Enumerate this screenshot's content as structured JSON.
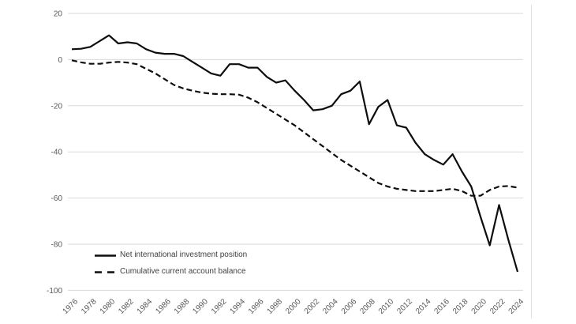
{
  "chart_data": {
    "type": "line",
    "title": "",
    "xlabel": "",
    "ylabel": "",
    "x": [
      1976,
      1977,
      1978,
      1979,
      1980,
      1981,
      1982,
      1983,
      1984,
      1985,
      1986,
      1987,
      1988,
      1989,
      1990,
      1991,
      1992,
      1993,
      1994,
      1995,
      1996,
      1997,
      1998,
      1999,
      2000,
      2001,
      2002,
      2003,
      2004,
      2005,
      2006,
      2007,
      2008,
      2009,
      2010,
      2011,
      2012,
      2013,
      2014,
      2015,
      2016,
      2017,
      2018,
      2019,
      2020,
      2021,
      2022,
      2023,
      2024
    ],
    "series": [
      {
        "name": "Net international investment position",
        "style": "solid",
        "values": [
          4.5,
          4.7,
          5.5,
          8,
          10.5,
          7,
          7.5,
          7,
          4.5,
          3,
          2.5,
          2.5,
          1.5,
          -1,
          -3.5,
          -6,
          -7,
          -2,
          -2,
          -3.5,
          -3.5,
          -7.5,
          -10,
          -9,
          -13.5,
          -17.5,
          -22,
          -21.5,
          -20,
          -15,
          -13.5,
          -9.5,
          -28,
          -20.5,
          -17.5,
          -28.5,
          -29.5,
          -36,
          -41,
          -43.5,
          -45.5,
          -41,
          -48.5,
          -55,
          -68,
          -80.5,
          -63,
          -78,
          -92
        ]
      },
      {
        "name": "Cumulative current account balance",
        "style": "dashed",
        "values": [
          -0.3,
          -1.2,
          -1.8,
          -1.8,
          -1.3,
          -1,
          -1.3,
          -2,
          -4,
          -6,
          -8.5,
          -11,
          -12.5,
          -13.5,
          -14.3,
          -14.8,
          -15,
          -15,
          -15.2,
          -16.5,
          -18.5,
          -21,
          -23.5,
          -26,
          -28.5,
          -31.5,
          -34.5,
          -37.5,
          -40.5,
          -43.5,
          -46,
          -48.5,
          -51,
          -53.5,
          -55,
          -56,
          -56.5,
          -57,
          -57,
          -57,
          -56.5,
          -56,
          -57,
          -59,
          -59,
          -56.5,
          -55,
          -54.8,
          -55.5
        ]
      }
    ],
    "ylim": [
      -100,
      20
    ],
    "yticks": [
      20,
      0,
      -20,
      -40,
      -60,
      -80,
      -100
    ],
    "xticks": [
      1976,
      1978,
      1980,
      1982,
      1984,
      1986,
      1988,
      1990,
      1992,
      1994,
      1996,
      1998,
      2000,
      2002,
      2004,
      2006,
      2008,
      2010,
      2012,
      2014,
      2016,
      2018,
      2020,
      2022,
      2024
    ],
    "grid": "horizontal",
    "legend_position": "inside-bottom-left",
    "colors": {
      "line": "#0d0d0d",
      "grid": "#d9d9d9",
      "tick_label": "#595959",
      "legend_text": "#404040",
      "chart_border": "#e2e2e2",
      "background": "#ffffff"
    }
  }
}
